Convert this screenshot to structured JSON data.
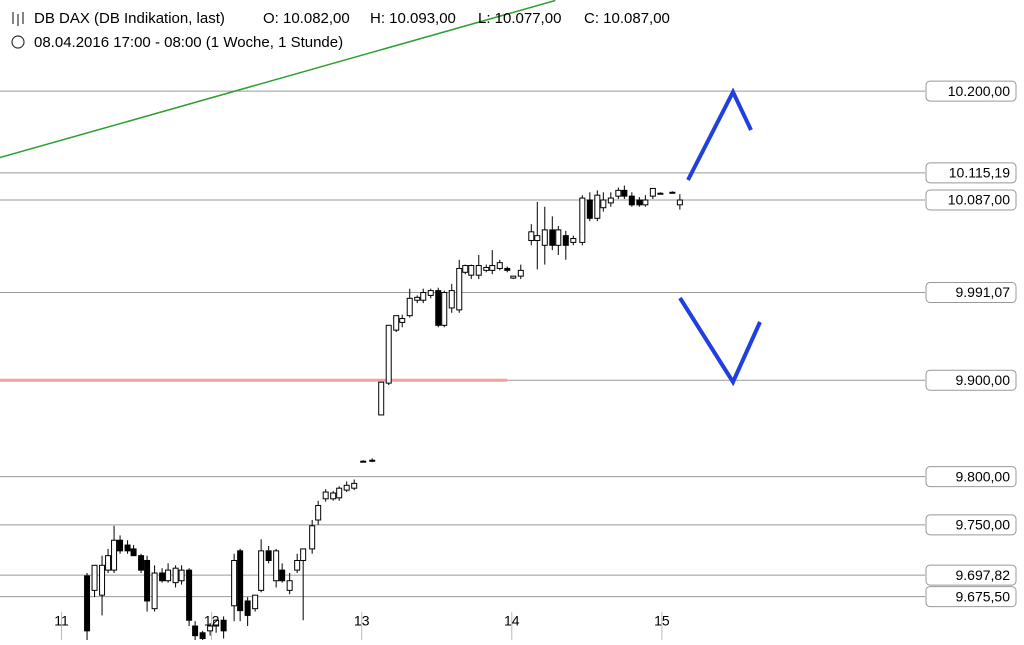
{
  "header": {
    "title": "DB DAX (DB Indikation, last)",
    "open": "O: 10.082,00",
    "high": "H: 10.093,00",
    "low": "L: 10.077,00",
    "close": "C: 10.087,00",
    "subtitle": "08.04.2016 17:00 - 08:00 (1 Woche, 1 Stunde)"
  },
  "chart_data": {
    "type": "candlestick",
    "x": [
      11.17,
      11.22,
      11.27,
      11.31,
      11.35,
      11.39,
      11.44,
      11.48,
      11.53,
      11.57,
      11.62,
      11.67,
      11.71,
      11.76,
      11.8,
      11.85,
      11.89,
      11.94,
      11.99,
      12.03,
      12.08,
      12.15,
      12.19,
      12.24,
      12.29,
      12.33,
      12.38,
      12.43,
      12.47,
      12.52,
      12.57,
      12.61,
      12.67,
      12.71,
      12.76,
      12.81,
      12.85,
      12.9,
      12.95,
      13.01,
      13.07,
      13.13,
      13.18,
      13.23,
      13.27,
      13.32,
      13.37,
      13.41,
      13.46,
      13.51,
      13.55,
      13.6,
      13.65,
      13.69,
      13.73,
      13.78,
      13.83,
      13.87,
      13.92,
      13.97,
      14.01,
      14.06,
      14.13,
      14.17,
      14.22,
      14.27,
      14.31,
      14.36,
      14.41,
      14.47,
      14.52,
      14.57,
      14.61,
      14.66,
      14.71,
      14.75,
      14.8,
      14.85,
      14.89,
      14.94,
      14.99,
      15.07,
      15.12
    ],
    "open": [
      9697,
      9682,
      9677,
      9703,
      9703,
      9734,
      9729,
      9725,
      9718,
      9713,
      9663,
      9700,
      9692,
      9690,
      9692,
      9703,
      9645,
      9638,
      9640,
      9645,
      9651,
      9666,
      9723,
      9671,
      9663,
      9682,
      9723,
      9692,
      9703,
      9682,
      9703,
      9713,
      9725,
      9755,
      9777,
      9777,
      9778,
      9786,
      9788,
      9815,
      9816,
      9864,
      9897,
      9952,
      9960,
      9967,
      9983,
      9983,
      9988,
      9993,
      9957,
      9975,
      9973,
      10012,
      10009,
      10009,
      10014,
      10014,
      10016,
      10016,
      10006,
      10008,
      10045,
      10045,
      10040,
      10056,
      10040,
      10050,
      10043,
      10043,
      10087,
      10068,
      10079,
      10084,
      10091,
      10097,
      10091,
      10087,
      10082,
      10091,
      10094,
      10095,
      10082
    ],
    "high": [
      9700,
      9708,
      9718,
      9725,
      9749,
      9739,
      9734,
      9729,
      9720,
      9718,
      9708,
      9705,
      9710,
      9708,
      9708,
      9705,
      9650,
      9640,
      9648,
      9652,
      9655,
      9720,
      9725,
      9675,
      9677,
      9735,
      9728,
      9725,
      9710,
      9700,
      9720,
      9725,
      9755,
      9775,
      9787,
      9785,
      9790,
      9795,
      9797,
      9817,
      9819,
      9898,
      9957,
      9967,
      9968,
      9995,
      9988,
      9995,
      9995,
      9996,
      9993,
      10000,
      10025,
      10020,
      10020,
      10030,
      10020,
      10035,
      10025,
      10018,
      10008,
      10020,
      10062,
      10085,
      10080,
      10070,
      10060,
      10055,
      10050,
      10092,
      10095,
      10097,
      10095,
      10095,
      10100,
      10102,
      10095,
      10090,
      10092,
      10099,
      10095,
      10096,
      10093
    ],
    "low": [
      9630,
      9675,
      9656,
      9700,
      9700,
      9720,
      9720,
      9718,
      9700,
      9660,
      9660,
      9690,
      9690,
      9685,
      9688,
      9645,
      9630,
      9630,
      9635,
      9638,
      9632,
      9650,
      9650,
      9645,
      9660,
      9680,
      9710,
      9685,
      9690,
      9678,
      9700,
      9651,
      9720,
      9750,
      9774,
      9775,
      9775,
      9784,
      9786,
      9815,
      9815,
      9864,
      9895,
      9950,
      9955,
      9965,
      9980,
      9980,
      9985,
      9955,
      9955,
      9970,
      9970,
      10010,
      10005,
      10005,
      10012,
      10010,
      10014,
      10012,
      10005,
      10005,
      10040,
      10015,
      10020,
      10035,
      10030,
      10025,
      10040,
      10040,
      10065,
      10065,
      10075,
      10080,
      10088,
      10088,
      10080,
      10080,
      10080,
      10088,
      10093,
      10094,
      10077
    ],
    "close": [
      9640,
      9708,
      9708,
      9718,
      9734,
      9723,
      9723,
      9718,
      9703,
      9671,
      9700,
      9692,
      9703,
      9705,
      9703,
      9651,
      9635,
      9632,
      9645,
      9651,
      9640,
      9713,
      9661,
      9656,
      9677,
      9723,
      9713,
      9723,
      9692,
      9692,
      9713,
      9725,
      9749,
      9770,
      9784,
      9783,
      9788,
      9791,
      9793,
      9816,
      9817,
      9898,
      9957,
      9967,
      9964,
      9985,
      9986,
      9991,
      9993,
      9957,
      9991,
      9993,
      10016,
      10019,
      10019,
      10019,
      10017,
      10019,
      10022,
      10014,
      10008,
      10014,
      10054,
      10050,
      10056,
      10040,
      10056,
      10040,
      10047,
      10089,
      10068,
      10092,
      10087,
      10089,
      10097,
      10091,
      10082,
      10082,
      10087,
      10099,
      10094,
      10095,
      10087
    ],
    "xlim": [
      10.59,
      16.72
    ],
    "xticks": [
      11,
      12,
      13,
      14,
      15
    ],
    "ylim": [
      9630.5,
      10294.5
    ],
    "yticks": [
      {
        "value": 10200,
        "label": "10.200,00"
      },
      {
        "value": 10115.19,
        "label": "10.115,19"
      },
      {
        "value": 10087,
        "label": "10.087,00"
      },
      {
        "value": 9991.07,
        "label": "9.991,07"
      },
      {
        "value": 9900,
        "label": "9.900,00"
      },
      {
        "value": 9800,
        "label": "9.800,00"
      },
      {
        "value": 9750,
        "label": "9.750,00"
      },
      {
        "value": 9697.82,
        "label": "9.697,82"
      },
      {
        "value": 9675.5,
        "label": "9.675,50"
      }
    ],
    "grid": true,
    "up_color": "#ffffff",
    "down_color": "#000000",
    "lines": [
      {
        "color": "#2e9e2e",
        "x": [
          10.59,
          14.29
        ],
        "y": [
          10131,
          10294
        ]
      },
      {
        "color": "#f4a0a0",
        "x": [
          10.59,
          13.97
        ],
        "y": [
          9900,
          9900
        ]
      }
    ]
  }
}
